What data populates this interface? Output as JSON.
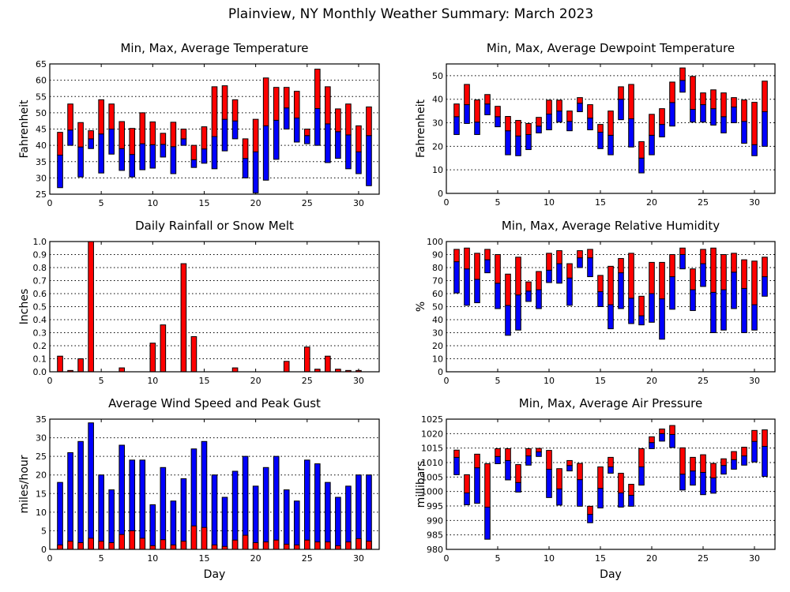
{
  "title": "Plainview, NY Monthly Weather Summary: March 2023",
  "colors": {
    "min_to_avg": "#0000ff",
    "avg_to_max": "#ff0000",
    "rain": "#ff0000",
    "gust": "#0000ff",
    "avg_wind": "#ff0000"
  },
  "chart_data": [
    {
      "type": "bar",
      "subtype": "range",
      "title": "Min, Max, Average Temperature",
      "xlabel": "",
      "ylabel": "Fahrenheit",
      "xlim": [
        0,
        32
      ],
      "ylim": [
        25,
        65
      ],
      "ystep": 5,
      "yfmt": 0,
      "grid": true,
      "x": [
        1,
        2,
        3,
        4,
        5,
        6,
        7,
        8,
        9,
        10,
        11,
        12,
        13,
        14,
        15,
        16,
        17,
        18,
        19,
        20,
        21,
        22,
        23,
        24,
        25,
        26,
        27,
        28,
        29,
        30,
        31
      ],
      "min": [
        27,
        40,
        30.3,
        39,
        31.5,
        37.3,
        32.3,
        30.3,
        32.5,
        33,
        36.4,
        31.3,
        40,
        33.2,
        34.5,
        32.8,
        38.3,
        42,
        30,
        25.4,
        29.3,
        35.7,
        45,
        41,
        40.5,
        40,
        34.7,
        36,
        32.8,
        31.3,
        27.6
      ],
      "avg": [
        37,
        44.7,
        39.5,
        42,
        43.5,
        45,
        39,
        37.2,
        40.5,
        40.2,
        40.3,
        39.6,
        42,
        35.6,
        38.9,
        42.7,
        48,
        47.5,
        36,
        38,
        46,
        47.7,
        51.5,
        48.4,
        43,
        51.3,
        46.6,
        44.2,
        43.2,
        38,
        43
      ],
      "max": [
        44,
        52.7,
        47,
        44.5,
        54,
        52.7,
        47.3,
        45.2,
        50,
        47.2,
        43.7,
        47.1,
        45,
        40,
        45.7,
        58,
        58.3,
        54,
        42,
        48,
        60.7,
        57.8,
        57.8,
        56.6,
        45,
        63.4,
        58,
        51.2,
        52.7,
        46,
        51.8
      ]
    },
    {
      "type": "bar",
      "subtype": "range",
      "title": "Min, Max, Average Dewpoint Temperature",
      "xlabel": "",
      "ylabel": "Fahrenheit",
      "xlim": [
        0,
        32
      ],
      "ylim": [
        0,
        55
      ],
      "yticks_max": 50,
      "ystep": 10,
      "yfmt": 0,
      "grid": true,
      "x": [
        1,
        2,
        3,
        4,
        5,
        6,
        7,
        8,
        9,
        10,
        11,
        12,
        13,
        14,
        15,
        16,
        17,
        18,
        19,
        20,
        21,
        22,
        23,
        24,
        25,
        26,
        27,
        28,
        29,
        30,
        31
      ],
      "min": [
        25,
        29.7,
        25,
        33.4,
        28.3,
        16.4,
        16,
        18.6,
        25.7,
        27,
        30.3,
        26.6,
        34.7,
        27,
        19,
        16.4,
        31.3,
        19.7,
        8.7,
        16.4,
        24,
        28.6,
        43,
        30.3,
        30.3,
        29,
        25.7,
        30,
        21.3,
        16,
        20
      ],
      "avg": [
        32.6,
        37.7,
        30.3,
        38,
        32.6,
        26.6,
        24.4,
        25,
        28.6,
        33.7,
        35,
        30.6,
        38.3,
        32,
        26,
        24.7,
        40,
        31.7,
        15,
        24.7,
        29.3,
        38.6,
        48,
        35.7,
        37.7,
        36,
        32.6,
        36.7,
        30.6,
        20.7,
        34.7
      ],
      "max": [
        38,
        46.3,
        39.7,
        42,
        37,
        32.7,
        31,
        29.7,
        32.3,
        39.6,
        39.6,
        35,
        40.7,
        37.7,
        29.3,
        35,
        45.3,
        46.3,
        22,
        33.6,
        36,
        47.3,
        53.3,
        49.7,
        42.7,
        44,
        42.7,
        40.7,
        39.7,
        38.7,
        47.7
      ]
    },
    {
      "type": "bar",
      "title": "Daily Rainfall or Snow Melt",
      "xlabel": "",
      "ylabel": "Inches",
      "xlim": [
        0,
        32
      ],
      "ylim": [
        0,
        1.0
      ],
      "ystep": 0.1,
      "yfmt": 1,
      "grid": true,
      "x": [
        1,
        2,
        3,
        4,
        5,
        6,
        7,
        8,
        9,
        10,
        11,
        12,
        13,
        14,
        15,
        16,
        17,
        18,
        19,
        20,
        21,
        22,
        23,
        24,
        25,
        26,
        27,
        28,
        29,
        30,
        31
      ],
      "values": [
        0.12,
        0.01,
        0.1,
        1.0,
        0,
        0,
        0.03,
        0,
        0,
        0.22,
        0.36,
        0,
        0.83,
        0.27,
        0,
        0,
        0,
        0.03,
        0,
        0,
        0,
        0,
        0.08,
        0,
        0.19,
        0.02,
        0.12,
        0.02,
        0.01,
        0.01,
        0
      ]
    },
    {
      "type": "bar",
      "subtype": "range",
      "title": "Min, Max, Average Relative Humidity",
      "xlabel": "",
      "ylabel": "%",
      "xlim": [
        0,
        32
      ],
      "ylim": [
        0,
        100
      ],
      "ystep": 10,
      "yfmt": 0,
      "grid": true,
      "x": [
        1,
        2,
        3,
        4,
        5,
        6,
        7,
        8,
        9,
        10,
        11,
        12,
        13,
        14,
        15,
        16,
        17,
        18,
        19,
        20,
        21,
        22,
        23,
        24,
        25,
        26,
        27,
        28,
        29,
        30,
        31
      ],
      "min": [
        60.5,
        51,
        53,
        76,
        48.5,
        28,
        32,
        54,
        48.5,
        68.5,
        68,
        51,
        80,
        73,
        50,
        33,
        48.5,
        37,
        36,
        38,
        25,
        48,
        79,
        47,
        65.5,
        30,
        32,
        48.5,
        30,
        32,
        58
      ],
      "avg": [
        84.5,
        79,
        71,
        86,
        68,
        51,
        59,
        62,
        63,
        78,
        83,
        72,
        87.5,
        87.5,
        61.5,
        51.5,
        76,
        56.5,
        43,
        60,
        56,
        73,
        90,
        63,
        83,
        61,
        63,
        76.5,
        64,
        51.5,
        73
      ],
      "max": [
        94,
        95,
        91,
        94,
        90,
        75,
        88,
        69,
        77,
        91,
        93,
        83,
        93,
        94,
        74,
        81,
        87,
        91,
        58,
        84,
        84,
        90,
        95,
        79,
        94,
        95,
        90,
        91,
        86,
        85,
        88
      ]
    },
    {
      "type": "bar",
      "subtype": "overlay",
      "title": "Average Wind Speed and Peak Gust",
      "xlabel": "Day",
      "ylabel": "miles/hour",
      "xlim": [
        0,
        32
      ],
      "ylim": [
        0,
        35
      ],
      "ystep": 5,
      "yfmt": 0,
      "grid": true,
      "x": [
        1,
        2,
        3,
        4,
        5,
        6,
        7,
        8,
        9,
        10,
        11,
        12,
        13,
        14,
        15,
        16,
        17,
        18,
        19,
        20,
        21,
        22,
        23,
        24,
        25,
        26,
        27,
        28,
        29,
        30,
        31
      ],
      "gust": [
        18,
        26,
        29,
        34,
        20,
        16,
        28,
        24,
        24,
        12,
        22,
        13,
        19,
        27,
        29,
        20,
        14,
        21,
        25,
        17,
        22,
        25,
        16,
        13,
        24,
        23,
        18,
        14,
        17,
        20,
        20
      ],
      "avg": [
        1.2,
        2.2,
        1.8,
        3,
        2.2,
        1.8,
        4,
        5,
        3,
        1,
        2.6,
        1.2,
        2.2,
        6.3,
        5.9,
        1.2,
        0.8,
        2.5,
        3.8,
        1.8,
        2,
        2.5,
        1.4,
        1.2,
        2.5,
        2,
        2,
        1,
        2,
        2.9,
        2.2
      ]
    },
    {
      "type": "bar",
      "subtype": "range",
      "title": "Min, Max, Average Air Pressure",
      "xlabel": "Day",
      "ylabel": "millibars",
      "xlim": [
        0,
        32
      ],
      "ylim": [
        980,
        1025
      ],
      "ystep": 5,
      "yfmt": 0,
      "grid": true,
      "x": [
        1,
        2,
        3,
        4,
        5,
        6,
        7,
        8,
        9,
        10,
        11,
        12,
        13,
        14,
        15,
        16,
        17,
        18,
        19,
        20,
        21,
        22,
        23,
        24,
        25,
        26,
        27,
        28,
        29,
        30,
        31
      ],
      "min": [
        1005.8,
        995.4,
        995.9,
        983.5,
        1009.6,
        1004.0,
        999.8,
        1009.1,
        1012.1,
        997.9,
        995.3,
        1007.1,
        994.9,
        989.2,
        994.3,
        1006.3,
        994.6,
        994.9,
        1002.2,
        1014.8,
        1017.4,
        1015.2,
        1000.5,
        1002.2,
        998.9,
        999.4,
        1006.0,
        1007.7,
        1009.1,
        1010.2,
        1005.2
      ],
      "avg": [
        1011.8,
        999.5,
        1008.2,
        994.6,
        1012.1,
        1010.7,
        1003.1,
        1012.3,
        1013.7,
        1007.7,
        1000.9,
        1009.0,
        1004.1,
        992.1,
        1001.1,
        1008.5,
        999.5,
        998.7,
        1008.5,
        1016.9,
        1020.0,
        1019.7,
        1006.0,
        1007.1,
        1006.6,
        1004.7,
        1009.0,
        1011.0,
        1012.3,
        1017.3,
        1015.6
      ],
      "max": [
        1014.3,
        1005.8,
        1012.9,
        1009.6,
        1014.8,
        1014.8,
        1009.3,
        1014.8,
        1014.9,
        1014.2,
        1007.9,
        1010.7,
        1009.7,
        994.9,
        1008.5,
        1011.8,
        1006.3,
        1002.5,
        1014.8,
        1018.9,
        1021.6,
        1022.8,
        1015.1,
        1011.8,
        1012.7,
        1009.7,
        1011.3,
        1013.8,
        1015.3,
        1021.1,
        1021.3
      ]
    }
  ]
}
